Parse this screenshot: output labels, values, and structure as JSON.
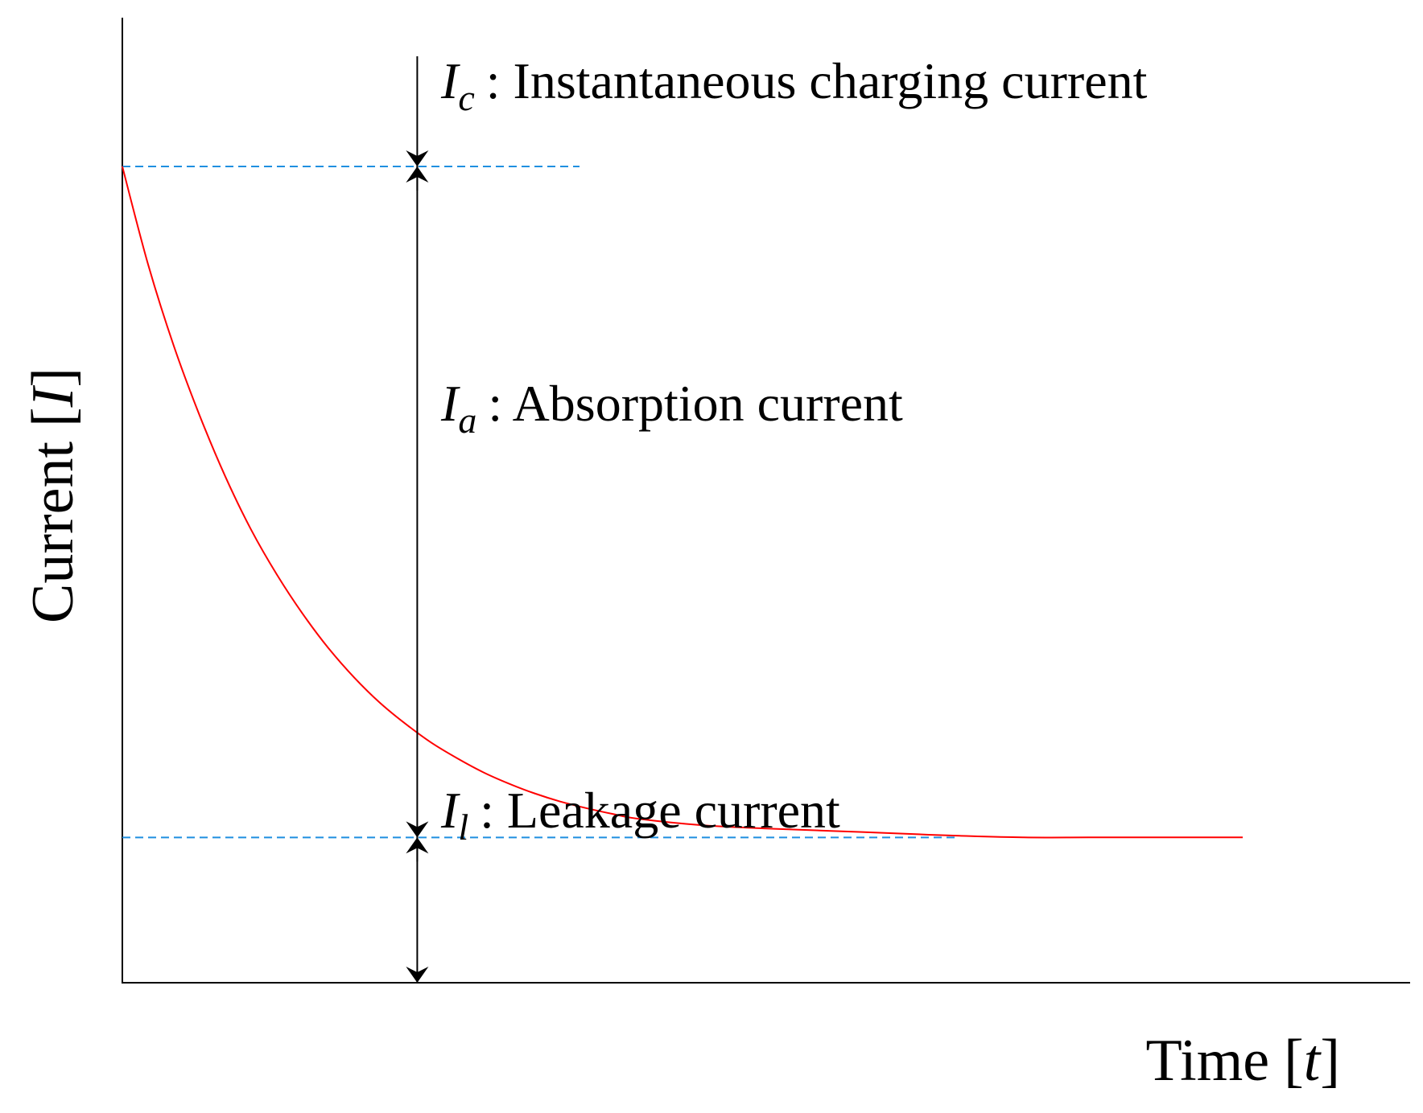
{
  "chart_data": {
    "type": "line",
    "title": "",
    "xlabel": {
      "text": "Time",
      "bracket_open": "[",
      "symbol": "t",
      "bracket_close": "]"
    },
    "ylabel": {
      "text": "Current",
      "bracket_open": "[",
      "symbol": "I",
      "bracket_close": "]"
    },
    "xlim": [
      0,
      1
    ],
    "ylim": [
      0,
      1
    ],
    "grid": false,
    "series": [
      {
        "color": "#ff0000",
        "x": [
          0.0,
          0.02,
          0.04,
          0.06,
          0.08,
          0.1,
          0.12,
          0.14,
          0.16,
          0.18,
          0.2,
          0.22,
          0.24,
          0.26,
          0.28,
          0.3,
          0.32,
          0.34,
          0.36,
          0.38,
          0.4,
          0.45,
          0.5,
          0.55,
          0.6,
          0.65,
          0.7,
          0.75,
          0.8,
          0.87
        ],
        "y": [
          1.0,
          0.88,
          0.78,
          0.695,
          0.62,
          0.555,
          0.5,
          0.452,
          0.41,
          0.374,
          0.343,
          0.317,
          0.294,
          0.275,
          0.258,
          0.244,
          0.232,
          0.222,
          0.214,
          0.207,
          0.201,
          0.193,
          0.189,
          0.186,
          0.183,
          0.18,
          0.178,
          0.178,
          0.178,
          0.178
        ]
      }
    ],
    "reference_lines": [
      {
        "y": 1.0,
        "x_end": 0.355,
        "color": "#1f8fe0",
        "style": "dashed"
      },
      {
        "y": 0.178,
        "x_end": 0.65,
        "color": "#1f8fe0",
        "style": "dashed"
      }
    ],
    "annotations": [
      {
        "symbol": "I",
        "subscript": "c",
        "text": ": Instantaneous charging current",
        "from_y": 1.1,
        "to_y": 1.0
      },
      {
        "symbol": "I",
        "subscript": "a",
        "text": ": Absorption current",
        "from_y": 1.0,
        "to_y": 0.178
      },
      {
        "symbol": "I",
        "subscript": "l",
        "text": ": Leakage current",
        "from_y": 0.178,
        "to_y": 0.0
      }
    ],
    "annotation_x": 0.229,
    "colors": {
      "axis": "#000000",
      "curve": "#ff0000",
      "reference": "#1f8fe0"
    }
  }
}
